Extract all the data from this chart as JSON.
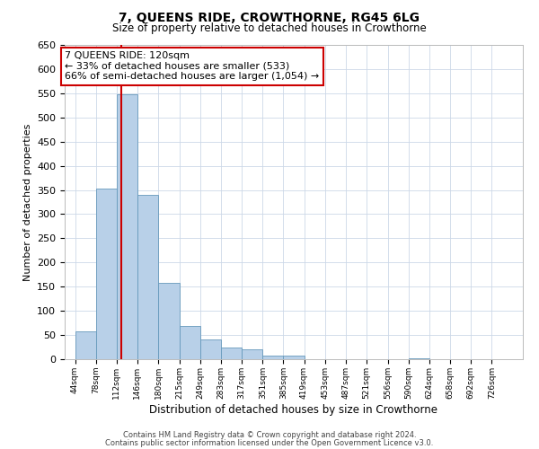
{
  "title": "7, QUEENS RIDE, CROWTHORNE, RG45 6LG",
  "subtitle": "Size of property relative to detached houses in Crowthorne",
  "xlabel": "Distribution of detached houses by size in Crowthorne",
  "ylabel": "Number of detached properties",
  "bin_edges": [
    44,
    78,
    112,
    146,
    180,
    215,
    249,
    283,
    317,
    351,
    385,
    419,
    453,
    487,
    521,
    556,
    590,
    624,
    658,
    692,
    726
  ],
  "bin_labels": [
    "44sqm",
    "78sqm",
    "112sqm",
    "146sqm",
    "180sqm",
    "215sqm",
    "249sqm",
    "283sqm",
    "317sqm",
    "351sqm",
    "385sqm",
    "419sqm",
    "453sqm",
    "487sqm",
    "521sqm",
    "556sqm",
    "590sqm",
    "624sqm",
    "658sqm",
    "692sqm",
    "726sqm"
  ],
  "bar_values": [
    57,
    353,
    547,
    340,
    157,
    68,
    40,
    25,
    20,
    8,
    8,
    0,
    0,
    0,
    0,
    0,
    2,
    0,
    0,
    0
  ],
  "bar_color": "#b8d0e8",
  "bar_edge_color": "#6699bb",
  "property_line_value": 120,
  "property_line_color": "#cc0000",
  "ylim": [
    0,
    650
  ],
  "yticks": [
    0,
    50,
    100,
    150,
    200,
    250,
    300,
    350,
    400,
    450,
    500,
    550,
    600,
    650
  ],
  "annotation_title": "7 QUEENS RIDE: 120sqm",
  "annotation_line1": "← 33% of detached houses are smaller (533)",
  "annotation_line2": "66% of semi-detached houses are larger (1,054) →",
  "annotation_box_color": "#ffffff",
  "annotation_box_edge": "#cc0000",
  "footer_line1": "Contains HM Land Registry data © Crown copyright and database right 2024.",
  "footer_line2": "Contains public sector information licensed under the Open Government Licence v3.0.",
  "background_color": "#ffffff",
  "grid_color": "#ccd8e8"
}
